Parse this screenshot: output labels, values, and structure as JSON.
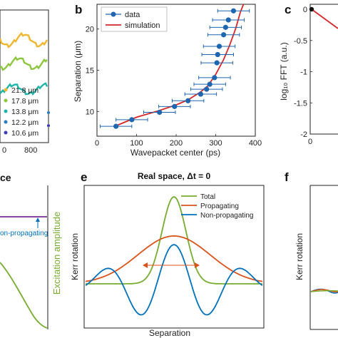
{
  "panels": {
    "a": {
      "legend": [
        "21.8 μm",
        "17.8 μm",
        "13.8 μm",
        "12.2 μm",
        "10.6 μm"
      ],
      "legend_colors": [
        "#f0b62e",
        "#8dc63f",
        "#1fb5a8",
        "#2b7fc0",
        "#3b3fb5"
      ],
      "xticks": [
        "0",
        "800"
      ]
    },
    "b": {
      "label": "b",
      "xlabel": "Wavepacket center (ps)",
      "ylabel": "Separation (μm)",
      "legend": {
        "data": "data",
        "simulation": "simulation"
      }
    },
    "c": {
      "label": "c",
      "ylabel": "log₁₀ FFT (a.u.)",
      "yticks": [
        "0",
        "-0.5",
        "-1",
        "-1.5",
        "-2"
      ],
      "xticks": [
        "0"
      ]
    },
    "d": {
      "title_fragment": "ce",
      "right_ylabel": "Excitation amplitude",
      "annotation": "on-propagating"
    },
    "e": {
      "label": "e",
      "title": "Real space,  Δt = 0",
      "ylabel": "Kerr rotation",
      "xlabel": "Separation",
      "legend": [
        "Total",
        "Propagating",
        "Non-propagating"
      ]
    },
    "f": {
      "label": "f",
      "ylabel": "Kerr rotation"
    }
  },
  "chart_data": [
    {
      "type": "line",
      "panel": "a",
      "series": [
        {
          "name": "21.8 μm",
          "color": "#f0b62e",
          "level": 0.78
        },
        {
          "name": "17.8 μm",
          "color": "#8dc63f",
          "level": 0.6
        },
        {
          "name": "13.8 μm",
          "color": "#1fb5a8",
          "level": 0.4
        },
        {
          "name": "12.2 μm",
          "color": "#2b7fc0",
          "level": 0.22
        },
        {
          "name": "10.6 μm",
          "color": "#3b3fb5",
          "level": 0.12
        }
      ],
      "xticks": [
        0,
        800
      ]
    },
    {
      "type": "scatter",
      "panel": "b",
      "xlabel": "Wavepacket center (ps)",
      "ylabel": "Separation (μm)",
      "xlim": [
        0,
        400
      ],
      "ylim": [
        7,
        23
      ],
      "xticks": [
        0,
        100,
        200,
        300,
        400
      ],
      "yticks": [
        10,
        15,
        20
      ],
      "series": [
        {
          "name": "data",
          "color": "#1f66b0",
          "x": [
            48,
            88,
            158,
            196,
            230,
            262,
            277,
            285,
            297,
            303,
            305,
            309,
            320,
            325,
            332,
            345,
            368
          ],
          "y": [
            8.2,
            9.0,
            9.9,
            10.6,
            11.3,
            12.1,
            12.7,
            13.3,
            14.1,
            15.9,
            16.9,
            17.9,
            19.3,
            20.2,
            21.1,
            22.2,
            24.0
          ],
          "xerr": 40
        },
        {
          "name": "simulation",
          "color": "#d62728",
          "x": [
            50,
            100,
            150,
            200,
            230,
            260,
            280,
            300,
            320,
            335,
            350,
            362,
            370
          ],
          "y": [
            8.3,
            9.3,
            10.0,
            10.8,
            11.4,
            12.3,
            13.1,
            14.5,
            16.3,
            18.0,
            20.0,
            22.0,
            23.0
          ]
        }
      ]
    },
    {
      "type": "line",
      "panel": "c",
      "ylabel": "log₁₀ FFT (a.u.)",
      "ylim": [
        -2,
        0.1
      ],
      "yticks": [
        0,
        -0.5,
        -1,
        -1.5,
        -2
      ],
      "xticks": [
        0
      ],
      "series": [
        {
          "color": "#d62728",
          "x": [
            0,
            0.4
          ],
          "y": [
            0,
            -2
          ]
        }
      ]
    },
    {
      "type": "line",
      "panel": "e",
      "title": "Real space,  Δt = 0",
      "xlabel": "Separation",
      "ylabel": "Kerr rotation",
      "series": [
        {
          "name": "Total",
          "color": "#77ac30"
        },
        {
          "name": "Propagating",
          "color": "#d95319"
        },
        {
          "name": "Non-propagating",
          "color": "#0072bd"
        }
      ]
    }
  ]
}
